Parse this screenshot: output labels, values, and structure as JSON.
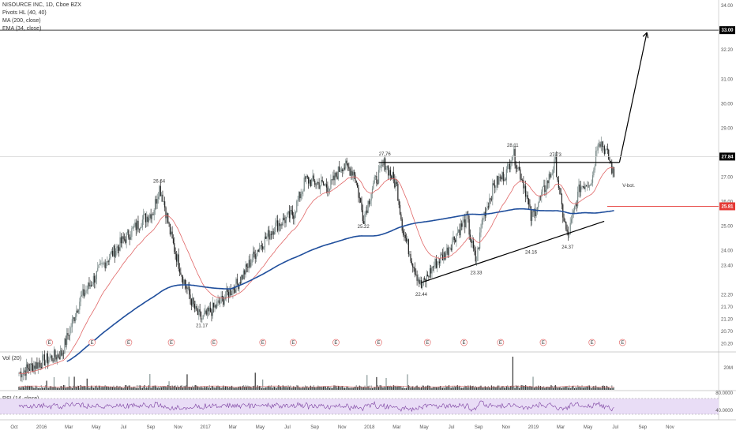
{
  "legend": {
    "symbol": "NISOURCE INC, 1D, Cboe BZX",
    "pivots": "Pivots HL (40, 40)",
    "ma": "MA (200, close)",
    "ema": "EMA (34, close)"
  },
  "volume_label": "Vol (20)",
  "rsi_label": "RSI (14, close)",
  "colors": {
    "up": "#26a69a",
    "down": "#222222",
    "ma200": "#1f4e9c",
    "ema34": "#e06666",
    "target": "#000000",
    "support": "#e53935",
    "rsi_band": "#e9ddf6",
    "rsi_line": "#7b3fa0",
    "earnings": "#e57373"
  },
  "chart_data": {
    "type": "candlestick",
    "symbol": "NISOURCE INC",
    "interval": "1D",
    "price_axis": {
      "ticks": [
        "34.00",
        "33.00",
        "32.20",
        "31.00",
        "30.00",
        "29.00",
        "27.00",
        "26.00",
        "25.00",
        "24.00",
        "23.40",
        "22.20",
        "21.70",
        "21.20",
        "20.70",
        "20.20"
      ],
      "ylim": [
        19.9,
        34.1
      ]
    },
    "time_axis": {
      "labels": [
        "Oct",
        "2016",
        "Mar",
        "May",
        "Jul",
        "Sep",
        "Nov",
        "2017",
        "Mar",
        "May",
        "Jul",
        "Sep",
        "Nov",
        "2018",
        "Mar",
        "May",
        "Jul",
        "Sep",
        "Nov",
        "2019",
        "Mar",
        "May",
        "Jul",
        "Sep",
        "Nov"
      ]
    },
    "anchors": [
      {
        "t": 0,
        "v": 19.0
      },
      {
        "t": 4,
        "v": 19.5
      },
      {
        "t": 7,
        "v": 19.8
      },
      {
        "t": 10,
        "v": 22.0
      },
      {
        "t": 14,
        "v": 23.5
      },
      {
        "t": 17,
        "v": 24.4
      },
      {
        "t": 20,
        "v": 25.2
      },
      {
        "t": 22,
        "v": 25.6
      },
      {
        "t": 23,
        "v": 26.6
      },
      {
        "t": 23.6,
        "v": 26.2
      },
      {
        "t": 25,
        "v": 24.5
      },
      {
        "t": 27,
        "v": 22.8
      },
      {
        "t": 29,
        "v": 21.5
      },
      {
        "t": 30,
        "v": 21.2
      },
      {
        "t": 33,
        "v": 21.9
      },
      {
        "t": 36,
        "v": 22.7
      },
      {
        "t": 39,
        "v": 24.0
      },
      {
        "t": 42,
        "v": 25.0
      },
      {
        "t": 45,
        "v": 25.5
      },
      {
        "t": 47,
        "v": 26.9
      },
      {
        "t": 51,
        "v": 26.6
      },
      {
        "t": 53,
        "v": 27.5
      },
      {
        "t": 55,
        "v": 27.2
      },
      {
        "t": 56.5,
        "v": 25.3
      },
      {
        "t": 58,
        "v": 26.6
      },
      {
        "t": 60,
        "v": 27.6
      },
      {
        "t": 62,
        "v": 26.6
      },
      {
        "t": 63,
        "v": 24.8
      },
      {
        "t": 65,
        "v": 23.2
      },
      {
        "t": 66,
        "v": 22.5
      },
      {
        "t": 68,
        "v": 23.4
      },
      {
        "t": 70,
        "v": 23.9
      },
      {
        "t": 72,
        "v": 24.8
      },
      {
        "t": 73.5,
        "v": 25.3
      },
      {
        "t": 74,
        "v": 24.6
      },
      {
        "t": 75,
        "v": 23.5
      },
      {
        "t": 76,
        "v": 25.3
      },
      {
        "t": 78,
        "v": 26.7
      },
      {
        "t": 80,
        "v": 27.2
      },
      {
        "t": 81,
        "v": 28.0
      },
      {
        "t": 83,
        "v": 26.6
      },
      {
        "t": 84,
        "v": 25.3
      },
      {
        "t": 86,
        "v": 26.4
      },
      {
        "t": 88,
        "v": 27.6
      },
      {
        "t": 89,
        "v": 25.8
      },
      {
        "t": 90,
        "v": 24.5
      },
      {
        "t": 92,
        "v": 26.6
      },
      {
        "t": 94,
        "v": 26.9
      },
      {
        "t": 95,
        "v": 28.6
      },
      {
        "t": 96,
        "v": 28.2
      },
      {
        "t": 97,
        "v": 27.6
      },
      {
        "t": 97.6,
        "v": 27.0
      }
    ],
    "labels": [
      {
        "text": "26.64",
        "t": 23,
        "v": 26.64,
        "pos": "above"
      },
      {
        "text": "21.17",
        "t": 30,
        "v": 21.17,
        "pos": "below"
      },
      {
        "text": "27.76",
        "t": 60,
        "v": 27.76,
        "pos": "above"
      },
      {
        "text": "25.22",
        "t": 56.5,
        "v": 25.22,
        "pos": "below"
      },
      {
        "text": "28.11",
        "t": 81,
        "v": 28.11,
        "pos": "above"
      },
      {
        "text": "27.73",
        "t": 88,
        "v": 27.73,
        "pos": "above"
      },
      {
        "text": "22.44",
        "t": 66,
        "v": 22.44,
        "pos": "below"
      },
      {
        "text": "23.33",
        "t": 75,
        "v": 23.33,
        "pos": "below"
      },
      {
        "text": "24.16",
        "t": 84,
        "v": 24.16,
        "pos": "below"
      },
      {
        "text": "24.37",
        "t": 90,
        "v": 24.37,
        "pos": "below"
      },
      {
        "text": "V-bot.",
        "t": 99,
        "v": 26.6,
        "pos": "right"
      }
    ],
    "trendlines": [
      {
        "t1": 59,
        "v1": 27.6,
        "t2": 98.5,
        "v2": 27.6
      },
      {
        "t1": 66,
        "v1": 22.7,
        "t2": 96,
        "v2": 25.2
      },
      {
        "t1": 98.5,
        "v1": 27.6,
        "t2": 103,
        "v2": 32.9
      }
    ],
    "target_price": "33.00",
    "current_price": "27.84",
    "support_price": "25.81",
    "earnings_t": [
      5,
      12,
      18,
      25,
      32,
      40,
      45,
      52,
      59,
      67,
      73,
      79,
      86,
      94,
      99
    ],
    "rsi_levels": [
      "80.0000",
      "40.0000"
    ]
  }
}
